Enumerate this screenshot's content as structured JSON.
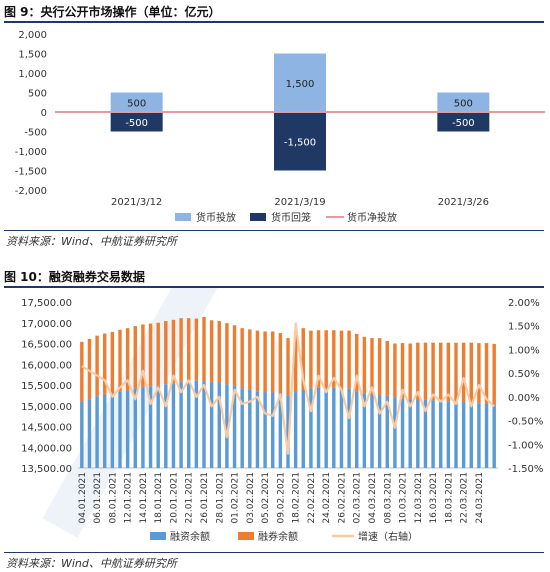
{
  "figure9": {
    "title": "图 9：央行公开市场操作（单位：亿元）",
    "source": "资料来源：Wind、中航证券研究所"
  },
  "figure10": {
    "title": "图 10：融资融券交易数据",
    "source": "资料来源：Wind、中航证券研究所"
  },
  "colors": {
    "inject": "#8eb4e3",
    "withdraw": "#1f3864",
    "net": "#e39aa0",
    "margin_finance": "#5b9bd5",
    "sec_lending": "#ed7d31",
    "growth": "#f8cba5",
    "rule_dark": "#1f3864"
  },
  "chart_data": [
    {
      "type": "bar",
      "categories": [
        "2021/3/12",
        "2021/3/19",
        "2021/3/26"
      ],
      "series": [
        {
          "name": "货币投放",
          "values": [
            500,
            1500,
            500
          ]
        },
        {
          "name": "货币回笼",
          "values": [
            -500,
            -1500,
            -500
          ]
        },
        {
          "name": "货币净投放",
          "values": [
            0,
            0,
            0
          ]
        }
      ],
      "ylim": [
        -2000,
        2000
      ],
      "yticks": [
        "2,000",
        "1,500",
        "1,000",
        "500",
        "0",
        "-500",
        "-1,000",
        "-1,500",
        "-2,000"
      ],
      "data_labels": {
        "inject": [
          "500",
          "1,500",
          "500"
        ],
        "withdraw": [
          "-500",
          "-1,500",
          "-500"
        ]
      },
      "legend_position": "bottom",
      "grid": false
    },
    {
      "type": "bar",
      "x": [
        "04.01.2021",
        "05.01.2021",
        "06.01.2021",
        "07.01.2021",
        "08.01.2021",
        "11.01.2021",
        "12.01.2021",
        "13.01.2021",
        "14.01.2021",
        "15.01.2021",
        "18.01.2021",
        "19.01.2021",
        "20.01.2021",
        "21.01.2021",
        "22.01.2021",
        "25.01.2021",
        "26.01.2021",
        "27.01.2021",
        "28.01.2021",
        "29.01.2021",
        "01.02.2021",
        "02.02.2021",
        "03.02.2021",
        "04.02.2021",
        "05.02.2021",
        "08.02.2021",
        "09.02.2021",
        "10.02.2021",
        "18.02.2021",
        "19.02.2021",
        "22.02.2021",
        "23.02.2021",
        "24.02.2021",
        "25.02.2021",
        "26.02.2021",
        "01.03.2021",
        "02.03.2021",
        "03.03.2021",
        "04.03.2021",
        "05.03.2021",
        "08.03.2021",
        "09.03.2021",
        "10.03.2021",
        "11.03.2021",
        "12.03.2021",
        "15.03.2021",
        "16.03.2021",
        "17.03.2021",
        "18.03.2021",
        "19.03.2021",
        "22.03.2021",
        "23.03.2021",
        "24.03.2021",
        "25.03.2021",
        "26.03.2021"
      ],
      "xtick_labels": [
        "04.01.2021",
        "06.01.2021",
        "08.01.2021",
        "12.01.2021",
        "14.01.2021",
        "18.01.2021",
        "20.01.2021",
        "22.01.2021",
        "26.01.2021",
        "28.01.2021",
        "01.02.2021",
        "03.02.2021",
        "05.02.2021",
        "09.02.2021",
        "18.02.2021",
        "22.02.2021",
        "24.02.2021",
        "26.02.2021",
        "02.03.2021",
        "04.03.2021",
        "08.03.2021",
        "10.03.2021",
        "12.03.2021",
        "16.03.2021",
        "18.03.2021",
        "22.03.2021",
        "24.03.2021"
      ],
      "series": [
        {
          "name": "融资余额",
          "axis": "left",
          "stacked": true,
          "values": [
            15100,
            15160,
            15230,
            15270,
            15300,
            15340,
            15370,
            15420,
            15450,
            15470,
            15480,
            15520,
            15540,
            15580,
            15620,
            15600,
            15590,
            15570,
            15560,
            15520,
            15480,
            15420,
            15380,
            15350,
            15330,
            15320,
            15300,
            15250,
            15330,
            15380,
            15420,
            15430,
            15440,
            15430,
            15420,
            15410,
            15350,
            15300,
            15280,
            15260,
            15240,
            15200,
            15180,
            15160,
            15150,
            15140,
            15130,
            15120,
            15110,
            15100,
            15090,
            15080,
            15060,
            15050,
            15040
          ]
        },
        {
          "name": "融券余额",
          "axis": "left",
          "stacked": true,
          "values": [
            1440,
            1450,
            1460,
            1470,
            1480,
            1490,
            1500,
            1500,
            1510,
            1510,
            1520,
            1520,
            1530,
            1530,
            1490,
            1500,
            1550,
            1490,
            1480,
            1470,
            1460,
            1450,
            1460,
            1460,
            1460,
            1470,
            1450,
            1380,
            1470,
            1490,
            1390,
            1390,
            1380,
            1390,
            1390,
            1400,
            1380,
            1360,
            1350,
            1370,
            1320,
            1300,
            1330,
            1340,
            1370,
            1380,
            1390,
            1400,
            1410,
            1420,
            1430,
            1440,
            1450,
            1460,
            1450
          ]
        },
        {
          "name": "增速（右轴）",
          "axis": "right",
          "type": "line",
          "unit": "%",
          "values": [
            0.65,
            0.55,
            0.45,
            0.35,
            0.0,
            0.2,
            0.35,
            -0.05,
            0.55,
            -0.15,
            0.2,
            -0.2,
            0.45,
            0.1,
            0.35,
            0.0,
            0.25,
            -0.2,
            0.0,
            -0.85,
            0.15,
            -0.15,
            -0.1,
            0.0,
            -0.35,
            -0.4,
            0.05,
            -1.2,
            1.55,
            0.35,
            -0.3,
            0.45,
            0.1,
            0.4,
            0.15,
            -0.45,
            0.45,
            -0.2,
            0.2,
            -0.35,
            -0.1,
            -0.65,
            0.15,
            -0.2,
            0.1,
            -0.3,
            0.05,
            -0.1,
            0.05,
            -0.15,
            0.4,
            -0.2,
            0.25,
            -0.05,
            -0.2
          ]
        }
      ],
      "ylim_left": [
        13500,
        17500
      ],
      "yticks_left": [
        "17,500.00",
        "17,000.00",
        "16,500.00",
        "16,000.00",
        "15,500.00",
        "15,000.00",
        "14,500.00",
        "14,000.00",
        "13,500.00"
      ],
      "ylim_right": [
        -1.5,
        2.0
      ],
      "yticks_right": [
        "2.00%",
        "1.50%",
        "1.00%",
        "0.50%",
        "0.00%",
        "-0.50%",
        "-1.00%",
        "-1.50%"
      ],
      "legend_position": "bottom",
      "grid": false
    }
  ]
}
